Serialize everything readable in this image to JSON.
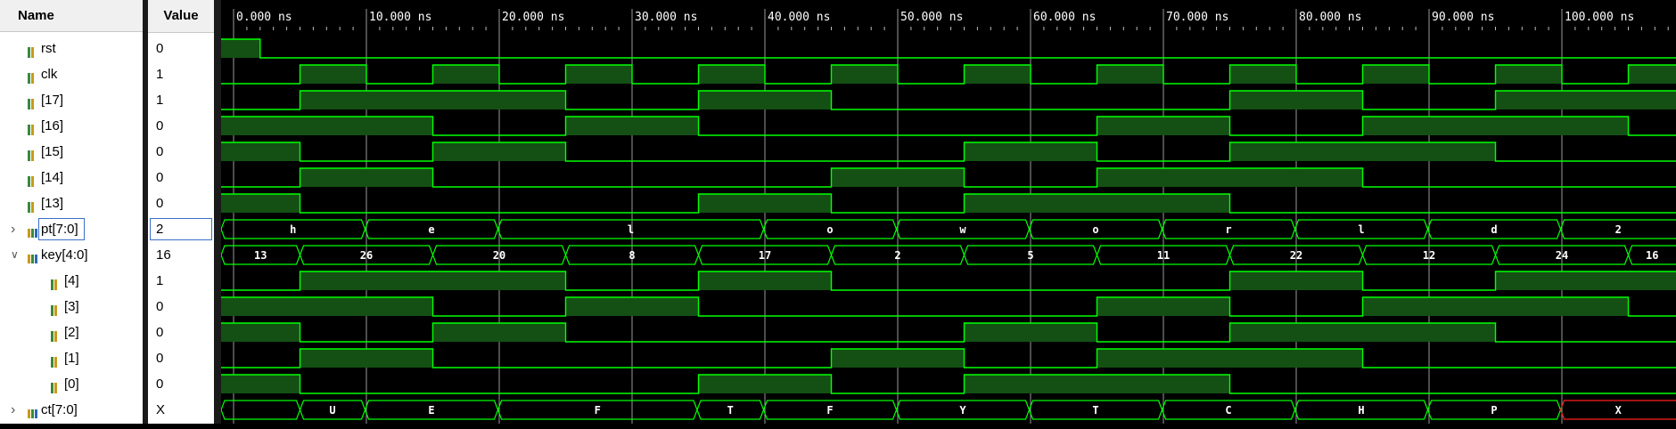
{
  "header": {
    "name_label": "Name",
    "value_label": "Value"
  },
  "time_unit": "ns",
  "time_ticks": [
    {
      "t": 0,
      "label": "0.000 ns"
    },
    {
      "t": 10,
      "label": "10.000 ns"
    },
    {
      "t": 20,
      "label": "20.000 ns"
    },
    {
      "t": 30,
      "label": "30.000 ns"
    },
    {
      "t": 40,
      "label": "40.000 ns"
    },
    {
      "t": 50,
      "label": "50.000 ns"
    },
    {
      "t": 60,
      "label": "60.000 ns"
    },
    {
      "t": 70,
      "label": "70.000 ns"
    },
    {
      "t": 80,
      "label": "80.000 ns"
    },
    {
      "t": 90,
      "label": "90.000 ns"
    },
    {
      "t": 100,
      "label": "100.000 ns"
    }
  ],
  "colors": {
    "wave": "#00ff00",
    "wave_fill": "#145014",
    "grid": "#9a9a9a",
    "error": "#ff2020",
    "text": "#ffffff"
  },
  "signals": [
    {
      "id": "rst",
      "name": "rst",
      "value": "0",
      "icon": "bit-icon",
      "indent": 0,
      "kind": "bit",
      "wave": [
        [
          -1,
          1
        ],
        [
          2,
          0
        ]
      ]
    },
    {
      "id": "clk",
      "name": "clk",
      "value": "1",
      "icon": "bit-icon",
      "indent": 0,
      "kind": "bit",
      "wave": [
        [
          -1,
          0
        ],
        [
          5,
          1
        ],
        [
          10,
          0
        ],
        [
          15,
          1
        ],
        [
          20,
          0
        ],
        [
          25,
          1
        ],
        [
          30,
          0
        ],
        [
          35,
          1
        ],
        [
          40,
          0
        ],
        [
          45,
          1
        ],
        [
          50,
          0
        ],
        [
          55,
          1
        ],
        [
          60,
          0
        ],
        [
          65,
          1
        ],
        [
          70,
          0
        ],
        [
          75,
          1
        ],
        [
          80,
          0
        ],
        [
          85,
          1
        ],
        [
          90,
          0
        ],
        [
          95,
          1
        ],
        [
          100,
          0
        ],
        [
          105,
          1
        ]
      ]
    },
    {
      "id": "pt17",
      "name": "[17]",
      "value": "1",
      "icon": "bit-icon",
      "indent": 0,
      "kind": "bit",
      "wave": [
        [
          -1,
          0
        ],
        [
          5,
          1
        ],
        [
          25,
          0
        ],
        [
          35,
          1
        ],
        [
          45,
          0
        ],
        [
          75,
          1
        ],
        [
          85,
          0
        ],
        [
          95,
          1
        ]
      ]
    },
    {
      "id": "pt16",
      "name": "[16]",
      "value": "0",
      "icon": "bit-icon",
      "indent": 0,
      "kind": "bit",
      "wave": [
        [
          -1,
          1
        ],
        [
          15,
          0
        ],
        [
          25,
          1
        ],
        [
          35,
          0
        ],
        [
          65,
          1
        ],
        [
          75,
          0
        ],
        [
          85,
          1
        ],
        [
          105,
          0
        ]
      ]
    },
    {
      "id": "pt15",
      "name": "[15]",
      "value": "0",
      "icon": "bit-icon",
      "indent": 0,
      "kind": "bit",
      "wave": [
        [
          -1,
          1
        ],
        [
          5,
          0
        ],
        [
          15,
          1
        ],
        [
          25,
          0
        ],
        [
          55,
          1
        ],
        [
          65,
          0
        ],
        [
          75,
          1
        ],
        [
          95,
          0
        ]
      ]
    },
    {
      "id": "pt14",
      "name": "[14]",
      "value": "0",
      "icon": "bit-icon",
      "indent": 0,
      "kind": "bit",
      "wave": [
        [
          -1,
          0
        ],
        [
          5,
          1
        ],
        [
          15,
          0
        ],
        [
          45,
          1
        ],
        [
          55,
          0
        ],
        [
          65,
          1
        ],
        [
          85,
          0
        ]
      ]
    },
    {
      "id": "pt13",
      "name": "[13]",
      "value": "0",
      "icon": "bit-icon",
      "indent": 0,
      "kind": "bit",
      "wave": [
        [
          -1,
          1
        ],
        [
          5,
          0
        ],
        [
          35,
          1
        ],
        [
          45,
          0
        ],
        [
          55,
          1
        ],
        [
          75,
          0
        ]
      ]
    },
    {
      "id": "pt",
      "name": "pt[7:0]",
      "value": "2",
      "icon": "bus-icon",
      "indent": 0,
      "kind": "bus",
      "expander": "collapsed",
      "selected": true,
      "wave": [
        [
          -1,
          "h"
        ],
        [
          9.9,
          "e"
        ],
        [
          19.9,
          "l"
        ],
        [
          39.9,
          "o"
        ],
        [
          49.9,
          "w"
        ],
        [
          59.9,
          "o"
        ],
        [
          69.9,
          "r"
        ],
        [
          79.9,
          "l"
        ],
        [
          89.9,
          "d"
        ],
        [
          99.9,
          "2"
        ]
      ]
    },
    {
      "id": "key",
      "name": "key[4:0]",
      "value": "16",
      "icon": "bus-icon",
      "indent": 0,
      "kind": "bus",
      "expander": "expanded",
      "wave": [
        [
          -1,
          "13"
        ],
        [
          5,
          "26"
        ],
        [
          15,
          "20"
        ],
        [
          25,
          "8"
        ],
        [
          35,
          "17"
        ],
        [
          45,
          "2"
        ],
        [
          55,
          "5"
        ],
        [
          65,
          "11"
        ],
        [
          75,
          "22"
        ],
        [
          85,
          "12"
        ],
        [
          95,
          "24"
        ],
        [
          105,
          "16"
        ]
      ]
    },
    {
      "id": "key4",
      "name": "[4]",
      "value": "1",
      "icon": "bit-icon",
      "indent": 1,
      "kind": "bit",
      "wave": [
        [
          -1,
          0
        ],
        [
          5,
          1
        ],
        [
          25,
          0
        ],
        [
          35,
          1
        ],
        [
          45,
          0
        ],
        [
          75,
          1
        ],
        [
          85,
          0
        ],
        [
          95,
          1
        ]
      ]
    },
    {
      "id": "key3",
      "name": "[3]",
      "value": "0",
      "icon": "bit-icon",
      "indent": 1,
      "kind": "bit",
      "wave": [
        [
          -1,
          1
        ],
        [
          15,
          0
        ],
        [
          25,
          1
        ],
        [
          35,
          0
        ],
        [
          65,
          1
        ],
        [
          75,
          0
        ],
        [
          85,
          1
        ],
        [
          105,
          0
        ]
      ]
    },
    {
      "id": "key2",
      "name": "[2]",
      "value": "0",
      "icon": "bit-icon",
      "indent": 1,
      "kind": "bit",
      "wave": [
        [
          -1,
          1
        ],
        [
          5,
          0
        ],
        [
          15,
          1
        ],
        [
          25,
          0
        ],
        [
          55,
          1
        ],
        [
          65,
          0
        ],
        [
          75,
          1
        ],
        [
          95,
          0
        ]
      ]
    },
    {
      "id": "key1",
      "name": "[1]",
      "value": "0",
      "icon": "bit-icon",
      "indent": 1,
      "kind": "bit",
      "wave": [
        [
          -1,
          0
        ],
        [
          5,
          1
        ],
        [
          15,
          0
        ],
        [
          45,
          1
        ],
        [
          55,
          0
        ],
        [
          65,
          1
        ],
        [
          85,
          0
        ]
      ]
    },
    {
      "id": "key0",
      "name": "[0]",
      "value": "0",
      "icon": "bit-icon",
      "indent": 1,
      "kind": "bit",
      "wave": [
        [
          -1,
          1
        ],
        [
          5,
          0
        ],
        [
          35,
          1
        ],
        [
          45,
          0
        ],
        [
          55,
          1
        ],
        [
          75,
          0
        ]
      ]
    },
    {
      "id": "ct",
      "name": "ct[7:0]",
      "value": "X",
      "icon": "bus-icon",
      "indent": 0,
      "kind": "bus",
      "expander": "collapsed",
      "wave": [
        [
          -1,
          ""
        ],
        [
          5,
          "U"
        ],
        [
          9.9,
          "E"
        ],
        [
          19.9,
          "F"
        ],
        [
          34.9,
          "T"
        ],
        [
          39.9,
          "F"
        ],
        [
          49.9,
          "Y"
        ],
        [
          59.9,
          "T"
        ],
        [
          69.9,
          "C"
        ],
        [
          79.9,
          "H"
        ],
        [
          89.9,
          "P"
        ],
        [
          99.9,
          "X",
          "error"
        ]
      ]
    }
  ]
}
